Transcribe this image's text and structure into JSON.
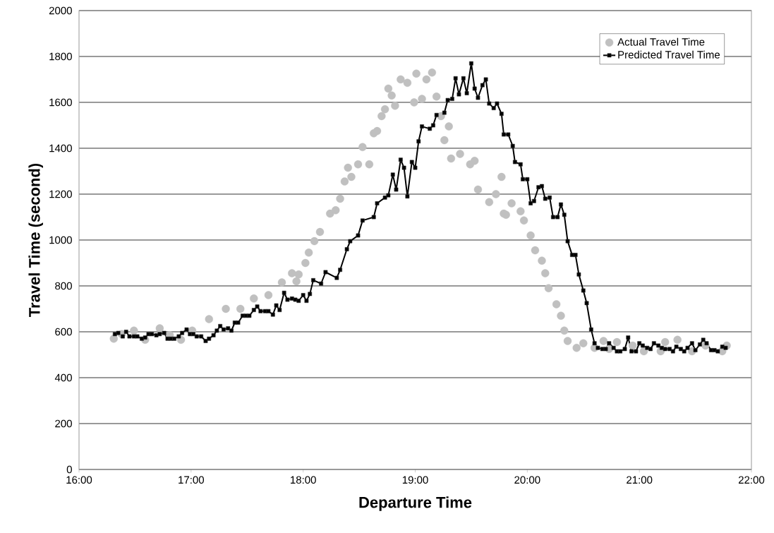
{
  "chart_data": {
    "type": "line",
    "xlabel": "Departure Time",
    "ylabel": "Travel Time (second)",
    "xlim": [
      16,
      22
    ],
    "ylim": [
      0,
      2000
    ],
    "xticks": [
      {
        "value": 16,
        "label": "16:00"
      },
      {
        "value": 17,
        "label": "17:00"
      },
      {
        "value": 18,
        "label": "18:00"
      },
      {
        "value": 19,
        "label": "19:00"
      },
      {
        "value": 20,
        "label": "20:00"
      },
      {
        "value": 21,
        "label": "21:00"
      },
      {
        "value": 22,
        "label": "22:00"
      }
    ],
    "yticks": [
      0,
      200,
      400,
      600,
      800,
      1000,
      1200,
      1400,
      1600,
      1800,
      2000
    ],
    "grid": "y",
    "legend": "top right",
    "series": [
      {
        "name": "Actual Travel Time",
        "type": "scatter",
        "marker": "circle",
        "color": "#c0c0c0",
        "x": [
          16.31,
          16.38,
          16.49,
          16.59,
          16.72,
          16.81,
          16.91,
          17.01,
          17.16,
          17.31,
          17.44,
          17.56,
          17.69,
          17.81,
          17.9,
          17.94,
          17.96,
          18.02,
          18.05,
          18.1,
          18.15,
          18.24,
          18.29,
          18.33,
          18.37,
          18.4,
          18.43,
          18.49,
          18.53,
          18.59,
          18.63,
          18.66,
          18.7,
          18.73,
          18.76,
          18.79,
          18.82,
          18.87,
          18.93,
          18.99,
          19.01,
          19.06,
          19.1,
          19.15,
          19.19,
          19.23,
          19.26,
          19.3,
          19.32,
          19.4,
          19.49,
          19.53,
          19.56,
          19.66,
          19.72,
          19.77,
          19.79,
          19.81,
          19.86,
          19.94,
          19.97,
          20.03,
          20.07,
          20.13,
          20.16,
          20.19,
          20.26,
          20.3,
          20.33,
          20.36,
          20.44,
          20.5,
          20.6,
          20.68,
          20.73,
          20.8,
          20.94,
          21.04,
          21.19,
          21.23,
          21.34,
          21.47,
          21.59,
          21.74,
          21.78
        ],
        "values": [
          570,
          590,
          605,
          565,
          615,
          585,
          565,
          605,
          655,
          700,
          700,
          745,
          760,
          815,
          855,
          820,
          850,
          900,
          945,
          995,
          1035,
          1115,
          1130,
          1180,
          1255,
          1315,
          1275,
          1330,
          1405,
          1330,
          1465,
          1475,
          1540,
          1570,
          1660,
          1630,
          1585,
          1700,
          1685,
          1600,
          1725,
          1615,
          1700,
          1730,
          1625,
          1540,
          1435,
          1495,
          1355,
          1375,
          1330,
          1345,
          1220,
          1165,
          1200,
          1275,
          1115,
          1110,
          1160,
          1125,
          1085,
          1020,
          955,
          910,
          855,
          790,
          720,
          670,
          605,
          560,
          530,
          550,
          530,
          560,
          525,
          555,
          540,
          515,
          515,
          555,
          565,
          515,
          540,
          515,
          540
        ]
      },
      {
        "name": "Predicted Travel Time",
        "marker": "square",
        "color": "#000000",
        "x": [
          16.32,
          16.35,
          16.39,
          16.42,
          16.45,
          16.49,
          16.52,
          16.56,
          16.59,
          16.62,
          16.65,
          16.69,
          16.72,
          16.76,
          16.79,
          16.82,
          16.85,
          16.89,
          16.92,
          16.96,
          16.99,
          17.02,
          17.05,
          17.09,
          17.13,
          17.16,
          17.2,
          17.23,
          17.26,
          17.29,
          17.33,
          17.36,
          17.39,
          17.42,
          17.46,
          17.49,
          17.52,
          17.56,
          17.59,
          17.62,
          17.66,
          17.69,
          17.73,
          17.76,
          17.79,
          17.83,
          17.86,
          17.9,
          17.93,
          17.96,
          18.0,
          18.03,
          18.06,
          18.09,
          18.16,
          18.2,
          18.3,
          18.33,
          18.39,
          18.42,
          18.49,
          18.53,
          18.63,
          18.66,
          18.73,
          18.76,
          18.8,
          18.83,
          18.87,
          18.9,
          18.93,
          18.97,
          19.0,
          19.03,
          19.06,
          19.13,
          19.16,
          19.19,
          19.26,
          19.29,
          19.33,
          19.36,
          19.39,
          19.43,
          19.46,
          19.5,
          19.53,
          19.56,
          19.6,
          19.63,
          19.66,
          19.7,
          19.73,
          19.77,
          19.79,
          19.83,
          19.87,
          19.89,
          19.94,
          19.96,
          20.0,
          20.03,
          20.06,
          20.1,
          20.13,
          20.16,
          20.2,
          20.23,
          20.27,
          20.3,
          20.33,
          20.36,
          20.4,
          20.43,
          20.46,
          20.5,
          20.53,
          20.57,
          20.6,
          20.63,
          20.67,
          20.7,
          20.73,
          20.77,
          20.8,
          20.83,
          20.87,
          20.9,
          20.93,
          20.97,
          21.0,
          21.03,
          21.07,
          21.1,
          21.13,
          21.17,
          21.2,
          21.23,
          21.27,
          21.3,
          21.33,
          21.37,
          21.4,
          21.43,
          21.47,
          21.5,
          21.54,
          21.57,
          21.6,
          21.64,
          21.67,
          21.7,
          21.74,
          21.77
        ],
        "values": [
          590,
          595,
          580,
          600,
          580,
          580,
          580,
          570,
          575,
          590,
          590,
          585,
          590,
          595,
          570,
          570,
          570,
          580,
          595,
          610,
          590,
          590,
          580,
          580,
          560,
          570,
          585,
          605,
          625,
          610,
          615,
          605,
          640,
          640,
          670,
          670,
          670,
          695,
          710,
          690,
          690,
          690,
          675,
          715,
          695,
          770,
          740,
          745,
          740,
          735,
          760,
          735,
          765,
          825,
          810,
          860,
          835,
          870,
          960,
          995,
          1020,
          1085,
          1100,
          1160,
          1185,
          1195,
          1285,
          1220,
          1350,
          1315,
          1190,
          1340,
          1315,
          1430,
          1495,
          1485,
          1500,
          1545,
          1555,
          1610,
          1615,
          1705,
          1635,
          1705,
          1640,
          1770,
          1660,
          1620,
          1675,
          1700,
          1595,
          1575,
          1595,
          1550,
          1460,
          1460,
          1410,
          1340,
          1330,
          1265,
          1265,
          1160,
          1170,
          1230,
          1235,
          1180,
          1185,
          1100,
          1100,
          1155,
          1110,
          995,
          935,
          935,
          850,
          780,
          725,
          610,
          550,
          530,
          525,
          525,
          550,
          530,
          515,
          515,
          525,
          575,
          515,
          515,
          550,
          540,
          530,
          525,
          550,
          540,
          530,
          525,
          525,
          515,
          535,
          525,
          515,
          530,
          550,
          520,
          545,
          565,
          550,
          520,
          520,
          515,
          535,
          530
        ]
      }
    ]
  }
}
